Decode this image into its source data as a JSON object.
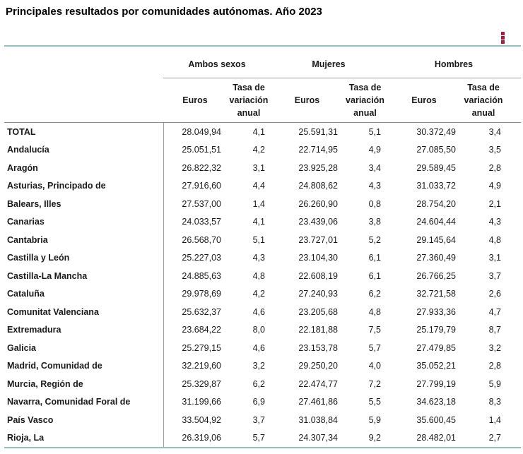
{
  "title": "Principales resultados por comunidades autónomas. Año 2023",
  "menu": {
    "icon": "kebab-menu-icon",
    "dot_color": "#a21d3f"
  },
  "colors": {
    "accent_teal_line": "#94c1be",
    "gray_line": "#9a9a9a",
    "text": "#1a1a1a"
  },
  "table": {
    "groups": [
      {
        "label": "Ambos sexos"
      },
      {
        "label": "Mujeres"
      },
      {
        "label": "Hombres"
      }
    ],
    "subheaders": {
      "euros": "Euros",
      "tasa": "Tasa de variación anual"
    },
    "rows": [
      {
        "label": "TOTAL",
        "values": [
          "28.049,94",
          "4,1",
          "25.591,31",
          "5,1",
          "30.372,49",
          "3,4"
        ]
      },
      {
        "label": "Andalucía",
        "values": [
          "25.051,51",
          "4,2",
          "22.714,95",
          "4,9",
          "27.085,50",
          "3,5"
        ]
      },
      {
        "label": "Aragón",
        "values": [
          "26.822,32",
          "3,1",
          "23.925,28",
          "3,4",
          "29.589,45",
          "2,8"
        ]
      },
      {
        "label": "Asturias, Principado de",
        "values": [
          "27.916,60",
          "4,4",
          "24.808,62",
          "4,3",
          "31.033,72",
          "4,9"
        ]
      },
      {
        "label": "Balears, Illes",
        "values": [
          "27.537,00",
          "1,4",
          "26.260,90",
          "0,8",
          "28.754,20",
          "2,1"
        ]
      },
      {
        "label": "Canarias",
        "values": [
          "24.033,57",
          "4,1",
          "23.439,06",
          "3,8",
          "24.604,44",
          "4,3"
        ]
      },
      {
        "label": "Cantabria",
        "values": [
          "26.568,70",
          "5,1",
          "23.727,01",
          "5,2",
          "29.145,64",
          "4,8"
        ]
      },
      {
        "label": "Castilla y León",
        "values": [
          "25.227,03",
          "4,3",
          "23.104,30",
          "6,1",
          "27.360,49",
          "3,1"
        ]
      },
      {
        "label": "Castilla-La Mancha",
        "values": [
          "24.885,63",
          "4,8",
          "22.608,19",
          "6,1",
          "26.766,25",
          "3,7"
        ]
      },
      {
        "label": "Cataluña",
        "values": [
          "29.978,69",
          "4,2",
          "27.240,93",
          "6,2",
          "32.721,58",
          "2,6"
        ]
      },
      {
        "label": "Comunitat Valenciana",
        "values": [
          "25.632,37",
          "4,6",
          "23.205,68",
          "4,8",
          "27.933,36",
          "4,7"
        ]
      },
      {
        "label": "Extremadura",
        "values": [
          "23.684,22",
          "8,0",
          "22.181,88",
          "7,5",
          "25.179,79",
          "8,7"
        ]
      },
      {
        "label": "Galicia",
        "values": [
          "25.279,15",
          "4,6",
          "23.153,78",
          "5,7",
          "27.479,85",
          "3,2"
        ]
      },
      {
        "label": "Madrid, Comunidad de",
        "values": [
          "32.219,60",
          "3,2",
          "29.250,20",
          "4,0",
          "35.052,21",
          "2,8"
        ]
      },
      {
        "label": "Murcia, Región de",
        "values": [
          "25.329,87",
          "6,2",
          "22.474,77",
          "7,2",
          "27.799,19",
          "5,9"
        ]
      },
      {
        "label": "Navarra, Comunidad Foral de",
        "values": [
          "31.199,66",
          "6,9",
          "27.461,86",
          "5,5",
          "34.623,18",
          "8,3"
        ]
      },
      {
        "label": "País Vasco",
        "values": [
          "33.504,92",
          "3,7",
          "31.038,84",
          "5,9",
          "35.600,45",
          "1,4"
        ]
      },
      {
        "label": "Rioja, La",
        "values": [
          "26.319,06",
          "5,7",
          "24.307,34",
          "9,2",
          "28.482,01",
          "2,7"
        ]
      }
    ]
  }
}
